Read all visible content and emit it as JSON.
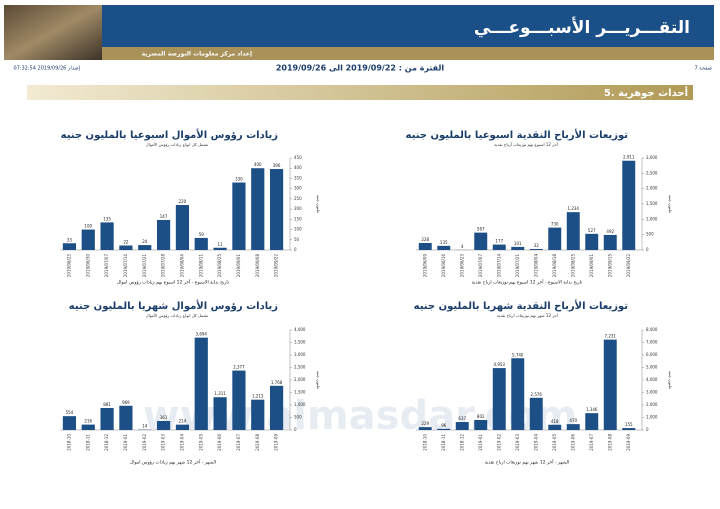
{
  "header": {
    "title": "التقـــريـــر الأسبـــوعـــي",
    "subtitle": "إعداد مركز معلومات البورصة المصرية",
    "page": "صفحة 7",
    "period": "الفترة من : 2019/09/22 الى 2019/09/26",
    "issued": "إصدار 2019/09/26 07:32:54"
  },
  "section": "5. أحداث جوهرية",
  "watermark": "www.almasdar.com",
  "charts": [
    {
      "type": "bar",
      "title": "توزيعات الأرباح النقدية اسبوعيا بالمليون جنيه",
      "subtitle": "آخر 12 اسبوع بهم توزيعات أرباح نقدية",
      "x_label": "تاريخ بداية الاسبوع - آخر 12 اسبوع بهم توزيعات ارباح نقدية",
      "y_label": "مليون جنيه",
      "categories": [
        "2019/06/09",
        "2019/06/16",
        "2019/06/23",
        "2019/07/07",
        "2019/07/14",
        "2019/07/21",
        "2019/08/04",
        "2019/08/18",
        "2019/08/25",
        "2019/09/01",
        "2019/09/15",
        "2019/09/22"
      ],
      "values": [
        228,
        135,
        4,
        567,
        177,
        101,
        32,
        730,
        1234,
        527,
        492,
        2911
      ],
      "value_labels": [
        "228",
        "135",
        "4",
        "567",
        "177",
        "101",
        "32",
        "730",
        "1,234",
        "527",
        "492",
        "2,911"
      ],
      "ylim": [
        0,
        3000
      ],
      "yticks": [
        0,
        500,
        {
          "value": 1000,
          "label": "1,000"
        },
        {
          "value": 1500,
          "label": "1,500"
        },
        {
          "value": 2000,
          "label": "2,000"
        },
        {
          "value": 2500,
          "label": "2,500"
        },
        {
          "value": 3000,
          "label": "3,000"
        }
      ],
      "color": "#1b4f86"
    },
    {
      "type": "bar",
      "title": "زيادات رؤوس الأموال اسبوعيا بالمليون جنيه",
      "subtitle": "تشمل كل انواع زيادات رؤوس الأموال",
      "x_label": "تاريخ بداية الاسبوع - آخر 12 اسبوع بهم زيادات رؤوس اموال",
      "y_label": "مليون جنيه",
      "categories": [
        "2019/06/23",
        "2019/06/30",
        "2019/07/07",
        "2019/07/14",
        "2019/07/21",
        "2019/07/28",
        "2019/08/04",
        "2019/08/11",
        "2019/08/25",
        "2019/09/01",
        "2019/09/08",
        "2019/09/22"
      ],
      "values": [
        33,
        100,
        135,
        22,
        24,
        147,
        220,
        59,
        11,
        330,
        400,
        396
      ],
      "ylim": [
        0,
        450
      ],
      "yticks": [
        0,
        50,
        100,
        150,
        200,
        250,
        300,
        350,
        400,
        450
      ],
      "color": "#1b4f86"
    },
    {
      "type": "bar",
      "title": "توزيعات الأرباح النقدية شهريا بالمليون جنيه",
      "subtitle": "آخر 12 شهر بهم توزيعات أرباح نقدية",
      "x_label": "الشهر - آخر 12 شهر بهم توزيعات ارباح نقدية",
      "y_label": "مليون جنيه",
      "categories": [
        "2018-10",
        "2018-11",
        "2018-12",
        "2019-01",
        "2019-02",
        "2019-03",
        "2019-04",
        "2019-05",
        "2019-06",
        "2019-07",
        "2019-08",
        "2019-09"
      ],
      "values": [
        229,
        96,
        637,
        802,
        4953,
        5740,
        2576,
        418,
        470,
        1346,
        7231,
        155
      ],
      "value_labels": [
        "229",
        "96",
        "637",
        "802",
        "4,953",
        "5,740",
        "2,576",
        "418",
        "470",
        "1,346",
        "7,231",
        "155"
      ],
      "ylim": [
        0,
        8000
      ],
      "yticks": [
        0,
        {
          "value": 1000,
          "label": "1,000"
        },
        {
          "value": 2000,
          "label": "2,000"
        },
        {
          "value": 3000,
          "label": "3,000"
        },
        {
          "value": 4000,
          "label": "4,000"
        },
        {
          "value": 5000,
          "label": "5,000"
        },
        {
          "value": 6000,
          "label": "6,000"
        },
        {
          "value": 7000,
          "label": "7,000"
        },
        {
          "value": 8000,
          "label": "8,000"
        }
      ],
      "color": "#1b4f86"
    },
    {
      "type": "bar",
      "title": "زيادات رؤوس الأموال شهريا بالمليون جنيه",
      "subtitle": "تشمل كل انواع زيادات رؤوس الأموال",
      "x_label": "الشهر - آخر 12 شهر بهم زيادات رؤوس اموال",
      "y_label": "مليون جنيه",
      "categories": [
        "2018-10",
        "2018-11",
        "2018-12",
        "2019-01",
        "2019-02",
        "2019-03",
        "2019-04",
        "2019-05",
        "2019-06",
        "2019-07",
        "2019-08",
        "2019-09"
      ],
      "values": [
        554,
        216,
        881,
        969,
        14,
        361,
        214,
        3694,
        1311,
        2377,
        1213,
        1768
      ],
      "value_labels": [
        "554",
        "216",
        "881",
        "969",
        "14",
        "361",
        "214",
        "3,694",
        "1,311",
        "2,377",
        "1,213",
        "1,768"
      ],
      "ylim": [
        0,
        4000
      ],
      "yticks": [
        0,
        500,
        {
          "value": 1000,
          "label": "1,000"
        },
        {
          "value": 1500,
          "label": "1,500"
        },
        {
          "value": 2000,
          "label": "2,000"
        },
        {
          "value": 2500,
          "label": "2,500"
        },
        {
          "value": 3000,
          "label": "3,000"
        },
        {
          "value": 3500,
          "label": "3,500"
        },
        {
          "value": 4000,
          "label": "4,000"
        }
      ],
      "color": "#1b4f86"
    }
  ]
}
